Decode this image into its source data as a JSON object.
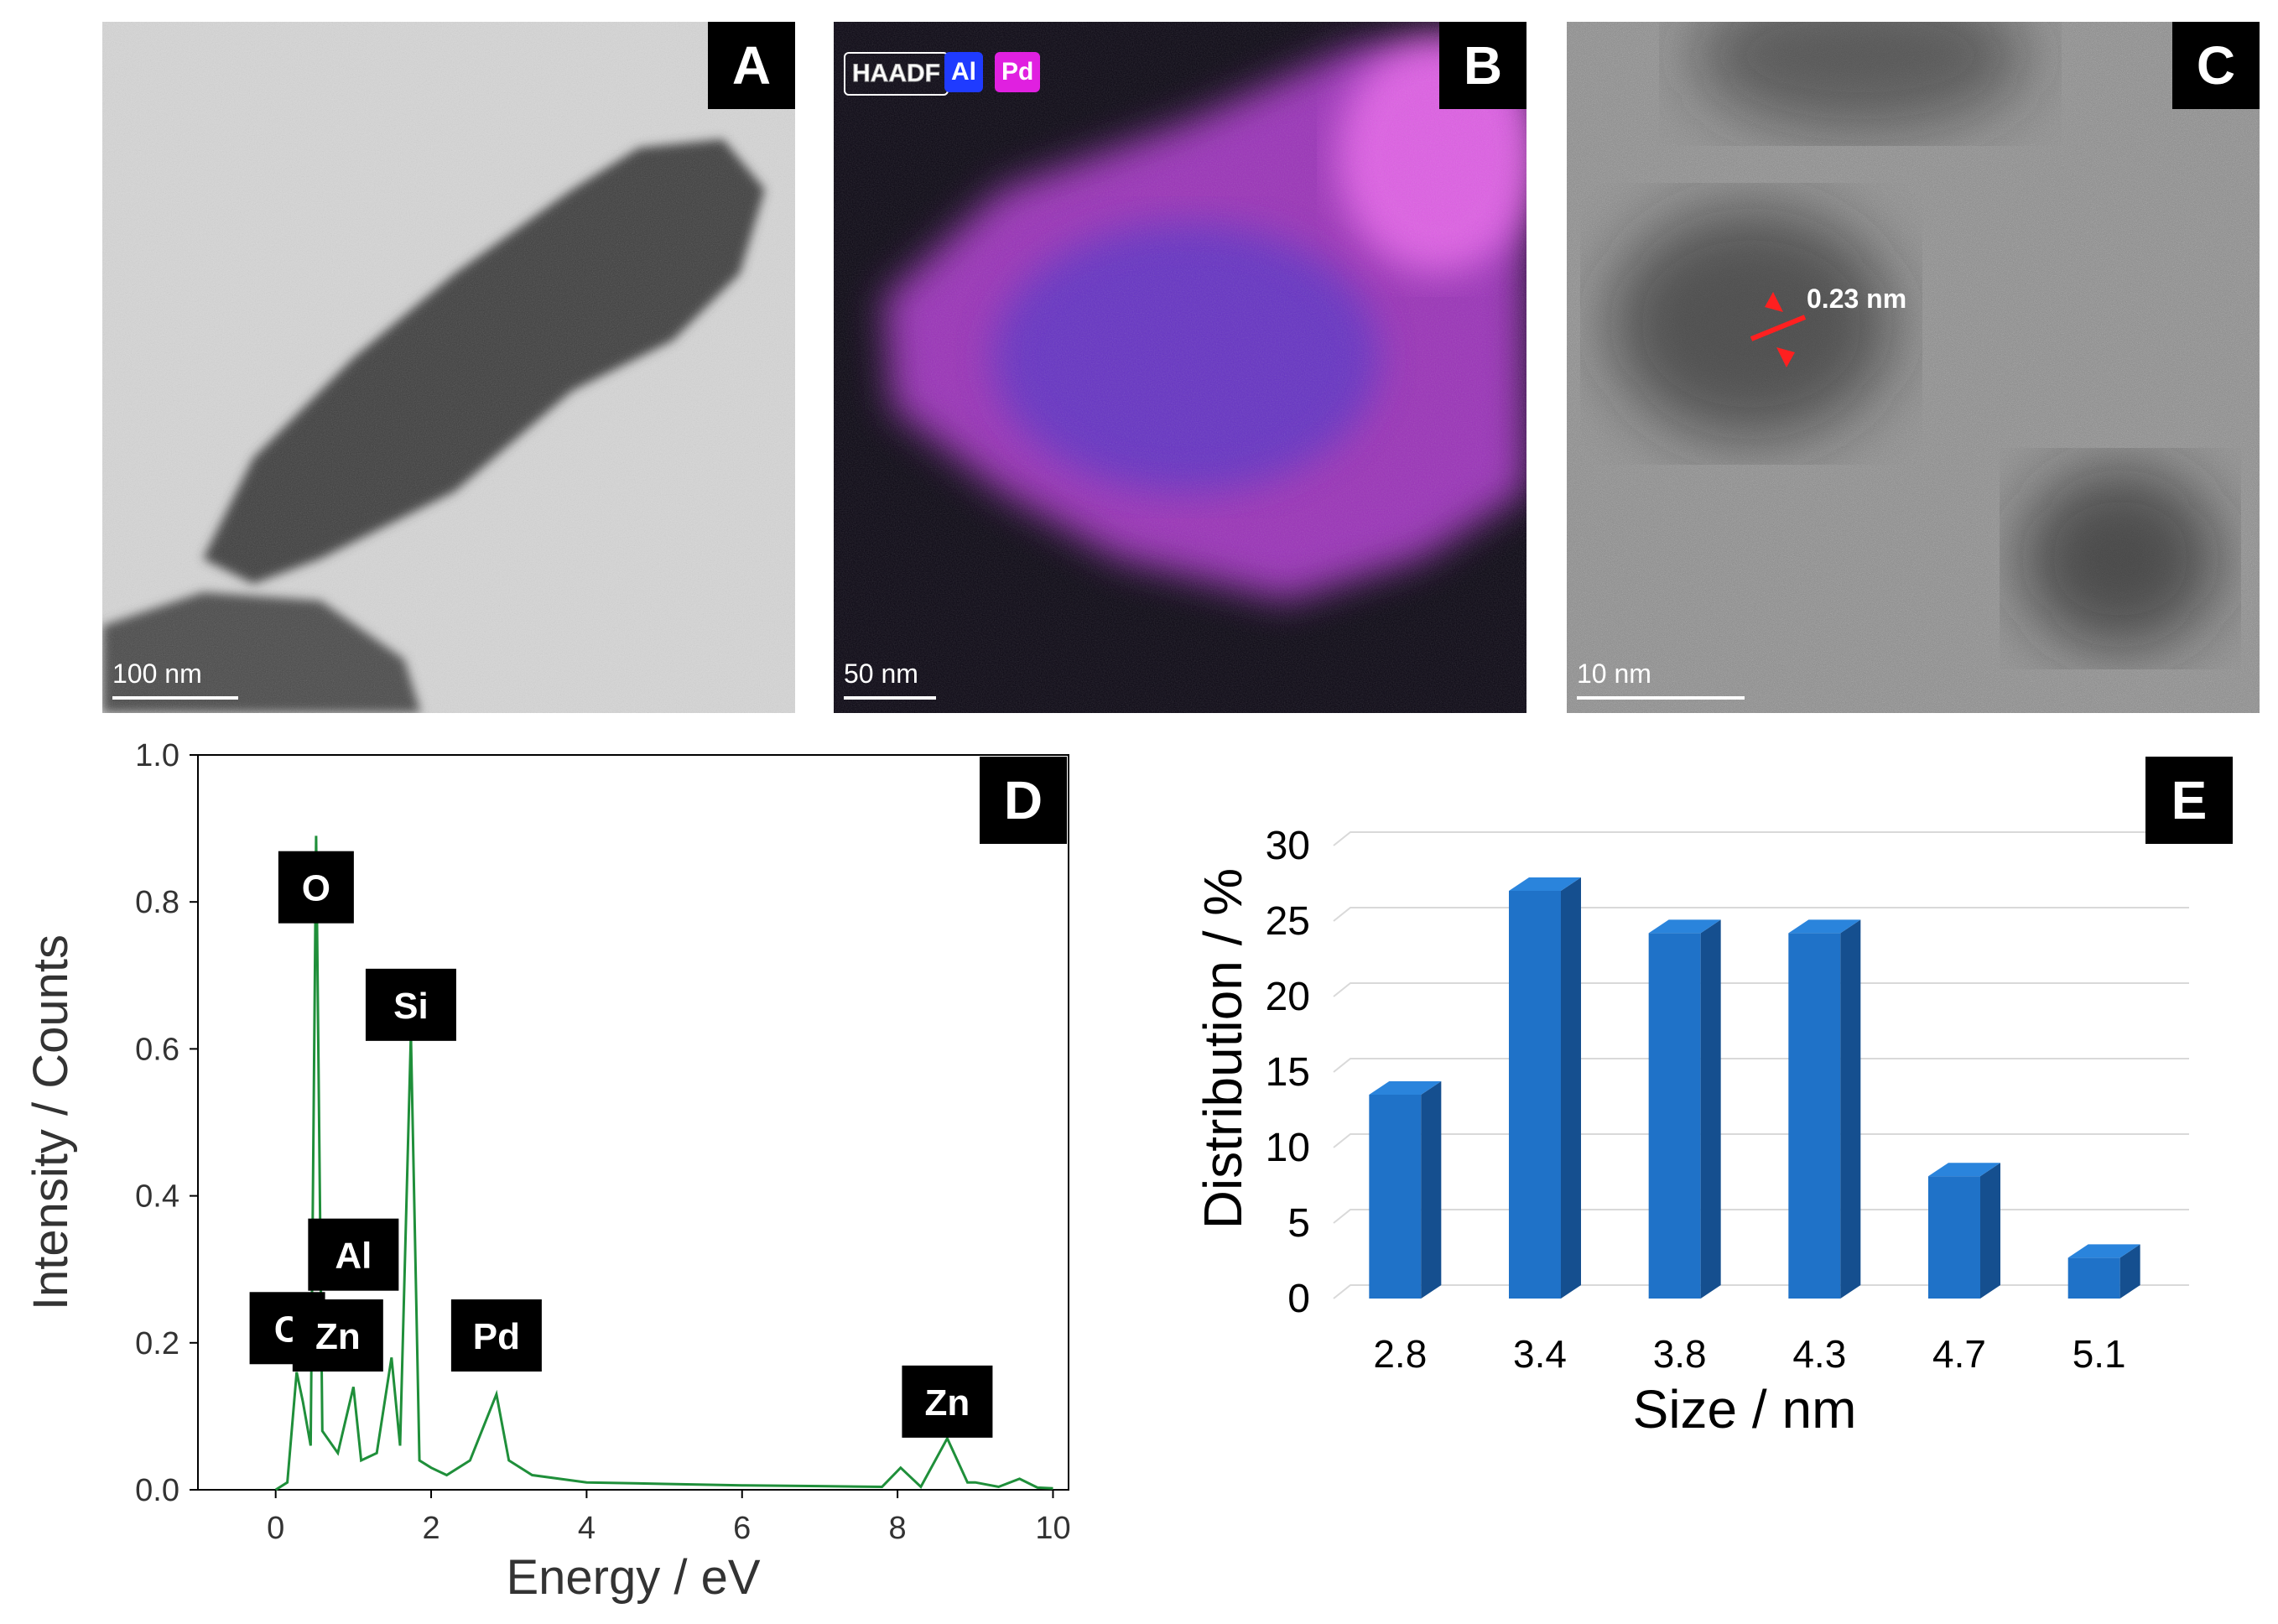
{
  "panels": {
    "a": {
      "letter": "A",
      "scale": "100 nm"
    },
    "b": {
      "letter": "B",
      "scale": "50 nm",
      "legend": [
        "HAADF",
        "Al",
        "Pd"
      ],
      "legend_colors": [
        "#ffffff",
        "#1f3bff",
        "#e020e0"
      ]
    },
    "c": {
      "letter": "C",
      "scale": "10 nm",
      "measure": "0.23 nm"
    },
    "d": {
      "letter": "D"
    },
    "e": {
      "letter": "E"
    }
  },
  "chart_data": [
    {
      "type": "line",
      "xlabel": "Energy / eV",
      "ylabel": "Intensity / Counts",
      "xlim": [
        -1,
        10.2
      ],
      "ylim": [
        0,
        1.0
      ],
      "xticks": [
        "0",
        "2",
        "4",
        "6",
        "8",
        "10"
      ],
      "yticks": [
        "0.0",
        "0.2",
        "0.4",
        "0.6",
        "0.8",
        "1.0"
      ],
      "line_color": "#1f8f3a",
      "series": [
        {
          "x": [
            0.0,
            0.15,
            0.27,
            0.35,
            0.45,
            0.52,
            0.6,
            0.8,
            1.0,
            1.1,
            1.3,
            1.49,
            1.6,
            1.74,
            1.85,
            2.0,
            2.2,
            2.5,
            2.84,
            3.0,
            3.3,
            4.0,
            5.0,
            6.0,
            7.0,
            7.8,
            8.04,
            8.3,
            8.64,
            8.9,
            9.0,
            9.3,
            9.57,
            9.8,
            10.0
          ],
          "y": [
            0.0,
            0.01,
            0.16,
            0.12,
            0.06,
            0.89,
            0.08,
            0.05,
            0.14,
            0.04,
            0.05,
            0.18,
            0.06,
            0.62,
            0.04,
            0.03,
            0.02,
            0.04,
            0.13,
            0.04,
            0.02,
            0.01,
            0.008,
            0.006,
            0.005,
            0.004,
            0.03,
            0.004,
            0.07,
            0.01,
            0.01,
            0.004,
            0.015,
            0.003,
            0.002
          ]
        }
      ],
      "peak_labels": [
        {
          "text": "O",
          "x": 0.52,
          "y": 0.82
        },
        {
          "text": "Si",
          "x": 1.74,
          "y": 0.66
        },
        {
          "text": "Al",
          "x": 1.0,
          "y": 0.32
        },
        {
          "text": "C",
          "x": 0.15,
          "y": 0.22
        },
        {
          "text": "Zn",
          "x": 0.8,
          "y": 0.21
        },
        {
          "text": "Pd",
          "x": 2.84,
          "y": 0.21
        },
        {
          "text": "Zn",
          "x": 8.64,
          "y": 0.12
        }
      ]
    },
    {
      "type": "bar",
      "xlabel": "Size / nm",
      "ylabel": "Distribution / %",
      "categories": [
        "2.8",
        "3.4",
        "3.8",
        "4.3",
        "4.7",
        "5.1"
      ],
      "values": [
        13.5,
        27,
        24.2,
        24.2,
        8.1,
        2.7
      ],
      "ylim": [
        0,
        30
      ],
      "yticks": [
        "0",
        "5",
        "10",
        "15",
        "20",
        "25",
        "30"
      ],
      "bar_color": "#1f72c8",
      "bar_side_color": "#154f8f",
      "bar_top_color": "#2a84dc"
    }
  ]
}
